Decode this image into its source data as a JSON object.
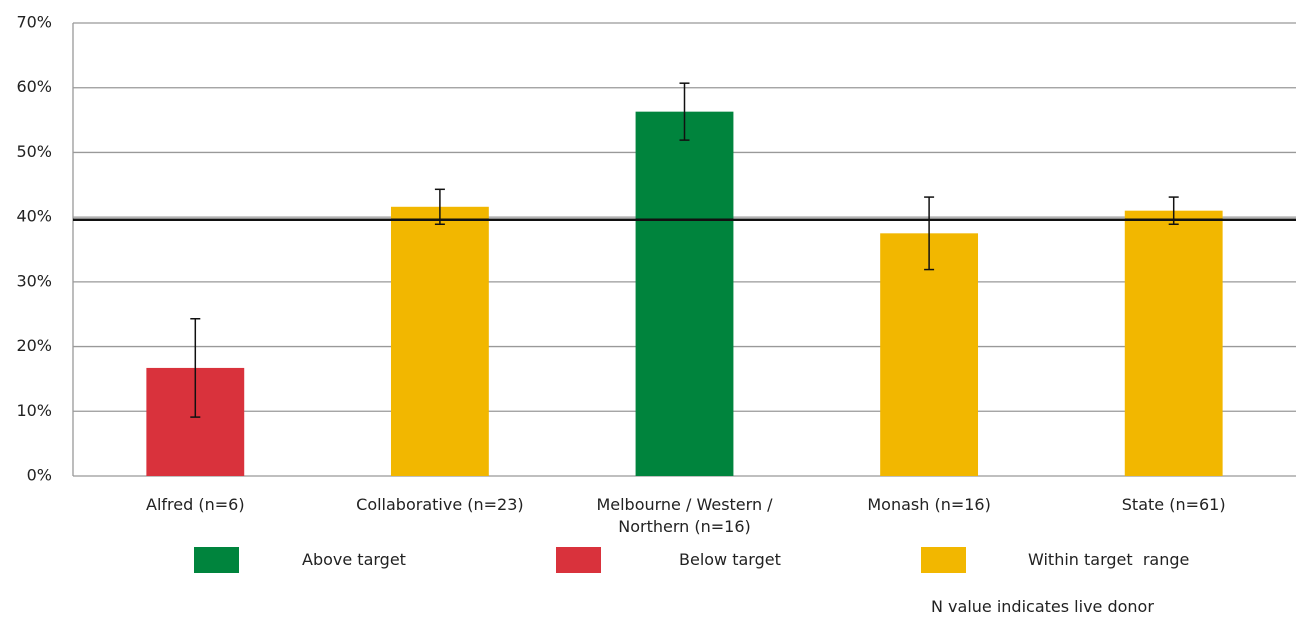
{
  "chart_data": {
    "type": "bar",
    "categories": [
      "Alfred (n=6)",
      "Collaborative (n=23)",
      "Melbourne / Western / Northern (n=16)",
      "Monash (n=16)",
      "State (n=61)"
    ],
    "values": [
      16.7,
      41.6,
      56.3,
      37.5,
      41.0
    ],
    "errors": [
      7.6,
      2.7,
      4.4,
      5.6,
      2.1
    ],
    "colors": [
      "#d9323c",
      "#f2b700",
      "#00843d",
      "#f2b700",
      "#f2b700"
    ],
    "target": 39.6,
    "ylim": [
      0,
      70
    ],
    "yticks": [
      {
        "value": 0,
        "label": "0%"
      },
      {
        "value": 10,
        "label": "10%"
      },
      {
        "value": 20,
        "label": "20%"
      },
      {
        "value": 30,
        "label": "30%"
      },
      {
        "value": 40,
        "label": "40%"
      },
      {
        "value": 50,
        "label": "50%"
      },
      {
        "value": 60,
        "label": "60%"
      },
      {
        "value": 70,
        "label": "70%"
      }
    ],
    "grid": true,
    "legend": [
      {
        "label": "Above target",
        "color": "#00843d"
      },
      {
        "label": "Below target",
        "color": "#d9323c"
      },
      {
        "label": "Within target  range",
        "color": "#f2b700"
      }
    ],
    "note": "N value indicates live donor"
  }
}
